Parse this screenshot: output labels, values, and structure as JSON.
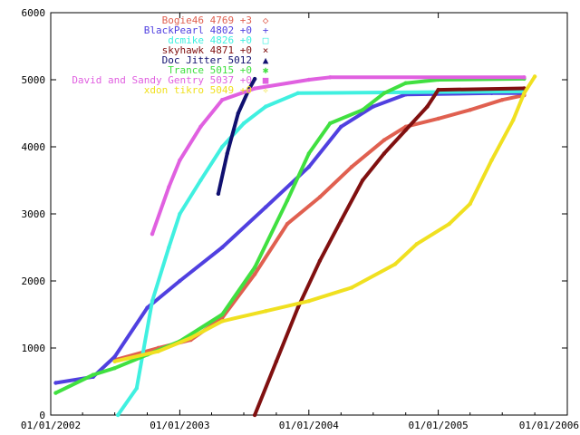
{
  "chart_data": {
    "type": "line",
    "title": "",
    "xlabel": "",
    "ylabel": "",
    "x_type": "date",
    "xlim": [
      "2002-01-01",
      "2006-01-01"
    ],
    "ylim": [
      0,
      6000
    ],
    "grid": false,
    "legend_position": "top-right",
    "x_tick_labels": [
      "01/01/2002",
      "01/01/2003",
      "01/01/2004",
      "01/01/2005",
      "01/01/2006"
    ],
    "x_ticks": [
      "2002-01-01",
      "2003-01-01",
      "2004-01-01",
      "2005-01-01",
      "2006-01-01"
    ],
    "y_tick_labels": [
      "0",
      "1000",
      "2000",
      "3000",
      "4000",
      "5000",
      "6000"
    ],
    "y_ticks": [
      0,
      1000,
      2000,
      3000,
      4000,
      5000,
      6000
    ],
    "series": [
      {
        "name": "Bogie46 4769 +3",
        "color": "#e06050",
        "marker": "◇",
        "points": [
          [
            "2002-07-01",
            820
          ],
          [
            "2002-11-01",
            1000
          ],
          [
            "2003-02-01",
            1120
          ],
          [
            "2003-05-01",
            1450
          ],
          [
            "2003-08-01",
            2100
          ],
          [
            "2003-11-01",
            2850
          ],
          [
            "2004-02-01",
            3250
          ],
          [
            "2004-05-01",
            3700
          ],
          [
            "2004-08-01",
            4100
          ],
          [
            "2004-10-01",
            4300
          ],
          [
            "2005-01-01",
            4420
          ],
          [
            "2005-04-01",
            4550
          ],
          [
            "2005-07-01",
            4700
          ],
          [
            "2005-09-01",
            4769
          ]
        ]
      },
      {
        "name": "BlackPearl 4802 +0",
        "color": "#5040e0",
        "marker": "+",
        "points": [
          [
            "2002-01-15",
            480
          ],
          [
            "2002-05-01",
            570
          ],
          [
            "2002-07-01",
            870
          ],
          [
            "2002-10-01",
            1600
          ],
          [
            "2003-01-01",
            2000
          ],
          [
            "2003-05-01",
            2500
          ],
          [
            "2003-09-01",
            3100
          ],
          [
            "2004-01-01",
            3700
          ],
          [
            "2004-04-01",
            4300
          ],
          [
            "2004-07-01",
            4600
          ],
          [
            "2004-10-01",
            4780
          ],
          [
            "2005-06-01",
            4800
          ],
          [
            "2005-09-01",
            4802
          ]
        ]
      },
      {
        "name": "dcmike 4826 +0",
        "color": "#40f0e0",
        "marker": "□",
        "points": [
          [
            "2002-07-10",
            0
          ],
          [
            "2002-09-01",
            400
          ],
          [
            "2002-10-15",
            1700
          ],
          [
            "2002-12-01",
            2500
          ],
          [
            "2003-01-01",
            3000
          ],
          [
            "2003-03-01",
            3500
          ],
          [
            "2003-05-01",
            4000
          ],
          [
            "2003-07-01",
            4350
          ],
          [
            "2003-09-01",
            4600
          ],
          [
            "2003-12-01",
            4800
          ],
          [
            "2005-09-01",
            4826
          ]
        ]
      },
      {
        "name": "skyhawk 4871 +0",
        "color": "#801010",
        "marker": "×",
        "points": [
          [
            "2003-08-01",
            0
          ],
          [
            "2003-10-01",
            800
          ],
          [
            "2003-12-01",
            1600
          ],
          [
            "2004-02-01",
            2300
          ],
          [
            "2004-04-01",
            2900
          ],
          [
            "2004-06-01",
            3500
          ],
          [
            "2004-08-01",
            3900
          ],
          [
            "2004-10-01",
            4250
          ],
          [
            "2004-12-01",
            4600
          ],
          [
            "2005-01-01",
            4850
          ],
          [
            "2005-09-01",
            4871
          ]
        ]
      },
      {
        "name": "Doc Jitter 5012",
        "color": "#101070",
        "marker": "▲",
        "points": [
          [
            "2003-04-20",
            3300
          ],
          [
            "2003-05-15",
            3900
          ],
          [
            "2003-06-15",
            4500
          ],
          [
            "2003-07-15",
            4850
          ],
          [
            "2003-08-01",
            5012
          ]
        ]
      },
      {
        "name": "Trance 5015 +0",
        "color": "#40e040",
        "marker": "✱",
        "points": [
          [
            "2002-01-15",
            330
          ],
          [
            "2002-05-01",
            600
          ],
          [
            "2002-07-01",
            700
          ],
          [
            "2002-10-01",
            900
          ],
          [
            "2003-01-01",
            1100
          ],
          [
            "2003-05-01",
            1500
          ],
          [
            "2003-08-01",
            2200
          ],
          [
            "2003-11-01",
            3200
          ],
          [
            "2004-01-01",
            3900
          ],
          [
            "2004-03-01",
            4350
          ],
          [
            "2004-06-01",
            4550
          ],
          [
            "2004-08-01",
            4800
          ],
          [
            "2004-10-01",
            4950
          ],
          [
            "2005-01-01",
            5000
          ],
          [
            "2005-09-01",
            5015
          ]
        ]
      },
      {
        "name": "David and Sandy Gentry 5037 +0",
        "color": "#e060e0",
        "marker": "■",
        "points": [
          [
            "2002-10-15",
            2700
          ],
          [
            "2002-12-01",
            3400
          ],
          [
            "2003-01-01",
            3800
          ],
          [
            "2003-03-01",
            4300
          ],
          [
            "2003-05-01",
            4700
          ],
          [
            "2003-08-01",
            4870
          ],
          [
            "2004-01-01",
            5000
          ],
          [
            "2004-03-01",
            5037
          ],
          [
            "2005-09-01",
            5037
          ]
        ]
      },
      {
        "name": "xdon tikro 5049 +0",
        "color": "#f0e020",
        "marker": "✧",
        "points": [
          [
            "2002-07-01",
            800
          ],
          [
            "2002-11-01",
            950
          ],
          [
            "2003-02-01",
            1150
          ],
          [
            "2003-05-01",
            1400
          ],
          [
            "2003-09-01",
            1550
          ],
          [
            "2004-01-01",
            1700
          ],
          [
            "2004-05-01",
            1900
          ],
          [
            "2004-09-01",
            2250
          ],
          [
            "2004-11-01",
            2550
          ],
          [
            "2005-02-01",
            2850
          ],
          [
            "2005-04-01",
            3150
          ],
          [
            "2005-06-01",
            3800
          ],
          [
            "2005-08-01",
            4400
          ],
          [
            "2005-09-01",
            4800
          ],
          [
            "2005-10-01",
            5049
          ]
        ]
      }
    ]
  }
}
